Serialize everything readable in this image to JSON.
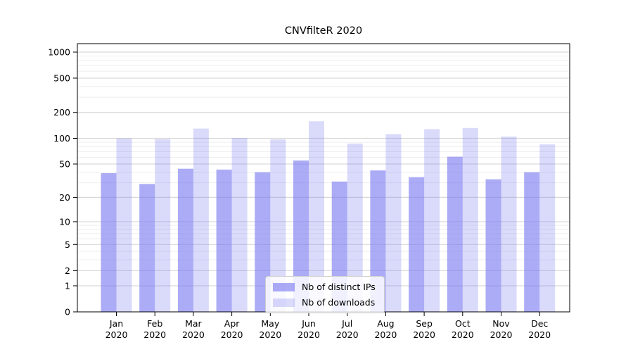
{
  "title": "CNVfilteR 2020",
  "chart_data": {
    "type": "bar",
    "title": "CNVfilteR 2020",
    "categories": [
      "Jan",
      "Feb",
      "Mar",
      "Apr",
      "May",
      "Jun",
      "Jul",
      "Aug",
      "Sep",
      "Oct",
      "Nov",
      "Dec"
    ],
    "year_label": "2020",
    "series": [
      {
        "name": "Nb of distinct IPs",
        "color": "rgba(120,120,240,0.62)",
        "values": [
          39,
          29,
          44,
          43,
          40,
          55,
          31,
          42,
          35,
          61,
          33,
          40
        ]
      },
      {
        "name": "Nb of downloads",
        "color": "rgba(120,120,240,0.27)",
        "values": [
          100,
          98,
          130,
          101,
          97,
          158,
          87,
          112,
          128,
          132,
          105,
          85
        ]
      }
    ],
    "y_scale": "log1p",
    "y_ticks": [
      0,
      1,
      2,
      5,
      10,
      20,
      50,
      100,
      200,
      500,
      1000
    ],
    "y_minor_ticks": [
      3,
      4,
      6,
      7,
      8,
      9,
      30,
      40,
      60,
      70,
      80,
      90,
      300,
      400,
      600,
      700,
      800,
      900
    ],
    "ylim": [
      0,
      1250
    ],
    "xlabel": "",
    "ylabel": "",
    "grid": "horizontal",
    "legend_position": "bottom-center-inside",
    "colors": {
      "major_grid": "#d9d9d9",
      "minor_grid": "#eeeeee",
      "spine": "#000000",
      "text": "#000000",
      "background": "#ffffff"
    }
  }
}
